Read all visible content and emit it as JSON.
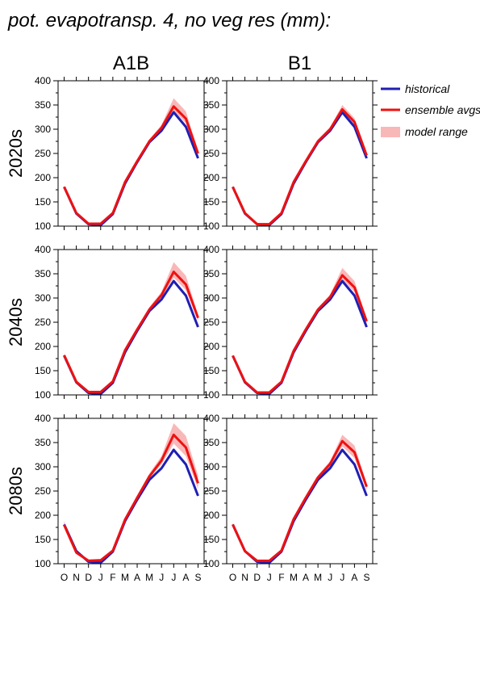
{
  "title": "pot. evapotransp. 4, no veg res (mm):",
  "colors": {
    "historical": "#1f1fb4",
    "ensemble": "#ee1111",
    "range": "#f9b8b8"
  },
  "chart_data": {
    "type": "line",
    "layout": "panel-grid",
    "columns": [
      "A1B",
      "B1"
    ],
    "rows": [
      "2020s",
      "2040s",
      "2080s"
    ],
    "x": [
      "O",
      "N",
      "D",
      "J",
      "F",
      "M",
      "A",
      "M",
      "J",
      "J",
      "A",
      "S"
    ],
    "ylim": [
      100,
      400
    ],
    "yticks": [
      100,
      150,
      200,
      250,
      300,
      350,
      400
    ],
    "legend": {
      "position": "right",
      "entries": [
        "historical",
        "ensemble avgs",
        "model range"
      ]
    },
    "grid": false,
    "historical": [
      181,
      126,
      104,
      102,
      125,
      188,
      232,
      273,
      297,
      335,
      305,
      240
    ],
    "panels": [
      {
        "column": "A1B",
        "row": "2020s",
        "ensemble": [
          181,
          127,
          105,
          105,
          127,
          191,
          234,
          275,
          303,
          347,
          322,
          250
        ],
        "range_low": [
          179,
          125,
          103,
          103,
          125,
          189,
          231,
          272,
          299,
          338,
          312,
          246
        ],
        "range_high": [
          183,
          129,
          107,
          107,
          129,
          193,
          237,
          279,
          309,
          364,
          337,
          256
        ]
      },
      {
        "column": "B1",
        "row": "2020s",
        "ensemble": [
          181,
          127,
          104,
          104,
          127,
          191,
          234,
          275,
          300,
          341,
          315,
          246
        ],
        "range_low": [
          179,
          125,
          103,
          103,
          125,
          189,
          231,
          272,
          297,
          335,
          308,
          242
        ],
        "range_high": [
          183,
          129,
          106,
          106,
          129,
          193,
          237,
          278,
          304,
          350,
          323,
          251
        ]
      },
      {
        "column": "A1B",
        "row": "2040s",
        "ensemble": [
          182,
          127,
          106,
          106,
          128,
          192,
          235,
          276,
          306,
          354,
          328,
          259
        ],
        "range_low": [
          180,
          125,
          104,
          104,
          126,
          190,
          232,
          273,
          301,
          342,
          316,
          252
        ],
        "range_high": [
          184,
          129,
          108,
          108,
          130,
          194,
          239,
          281,
          313,
          374,
          346,
          266
        ]
      },
      {
        "column": "B1",
        "row": "2040s",
        "ensemble": [
          181,
          127,
          105,
          105,
          127,
          191,
          235,
          276,
          302,
          347,
          322,
          252
        ],
        "range_low": [
          179,
          125,
          103,
          103,
          125,
          189,
          232,
          273,
          298,
          338,
          312,
          246
        ],
        "range_high": [
          183,
          129,
          107,
          107,
          129,
          193,
          238,
          280,
          307,
          362,
          335,
          258
        ]
      },
      {
        "column": "A1B",
        "row": "2080s",
        "ensemble": [
          180,
          123,
          106,
          107,
          127,
          191,
          236,
          280,
          313,
          366,
          340,
          266
        ],
        "range_low": [
          178,
          120,
          104,
          104,
          125,
          189,
          233,
          276,
          305,
          348,
          322,
          254
        ],
        "range_high": [
          188,
          126,
          109,
          110,
          130,
          194,
          240,
          286,
          322,
          390,
          364,
          282
        ]
      },
      {
        "column": "B1",
        "row": "2080s",
        "ensemble": [
          181,
          126,
          106,
          106,
          127,
          192,
          236,
          278,
          306,
          353,
          330,
          259
        ],
        "range_low": [
          179,
          124,
          104,
          104,
          125,
          190,
          233,
          275,
          300,
          342,
          318,
          251
        ],
        "range_high": [
          184,
          128,
          108,
          108,
          129,
          194,
          240,
          282,
          312,
          366,
          344,
          266
        ]
      }
    ]
  }
}
